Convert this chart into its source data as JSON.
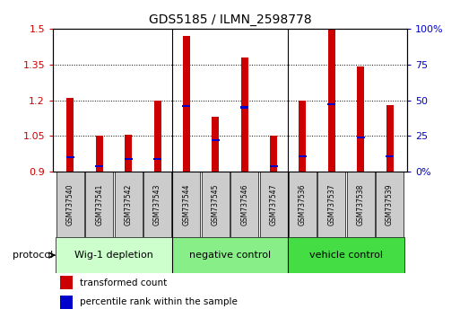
{
  "title": "GDS5185 / ILMN_2598778",
  "samples": [
    "GSM737540",
    "GSM737541",
    "GSM737542",
    "GSM737543",
    "GSM737544",
    "GSM737545",
    "GSM737546",
    "GSM737547",
    "GSM737536",
    "GSM737537",
    "GSM737538",
    "GSM737539"
  ],
  "red_values": [
    1.21,
    1.05,
    1.055,
    1.2,
    1.47,
    1.13,
    1.38,
    1.05,
    1.2,
    1.5,
    1.34,
    1.18
  ],
  "blue_values_pct": [
    10,
    4,
    9,
    9,
    46,
    22,
    45,
    4,
    11,
    47,
    24,
    11
  ],
  "y_min": 0.9,
  "y_max": 1.5,
  "y_ticks": [
    0.9,
    1.05,
    1.2,
    1.35,
    1.5
  ],
  "y_right_ticks": [
    0,
    25,
    50,
    75,
    100
  ],
  "y_right_labels": [
    "0%",
    "25",
    "50",
    "75",
    "100%"
  ],
  "groups": [
    {
      "label": "Wig-1 depletion",
      "start": 0,
      "end": 4,
      "color": "#ccffcc"
    },
    {
      "label": "negative control",
      "start": 4,
      "end": 8,
      "color": "#88ee88"
    },
    {
      "label": "vehicle control",
      "start": 8,
      "end": 12,
      "color": "#44dd44"
    }
  ],
  "protocol_label": "protocol",
  "red_color": "#cc0000",
  "blue_color": "#0000cc",
  "bar_width": 0.25,
  "blue_bar_height": 0.008,
  "legend_red": "transformed count",
  "legend_blue": "percentile rank within the sample",
  "bg_color": "#ffffff",
  "tick_label_color_left": "#cc0000",
  "tick_label_color_right": "#0000cc",
  "sample_box_color": "#cccccc",
  "title_fontsize": 10,
  "axis_fontsize": 8,
  "sample_fontsize": 5.5,
  "group_fontsize": 8,
  "legend_fontsize": 7.5
}
